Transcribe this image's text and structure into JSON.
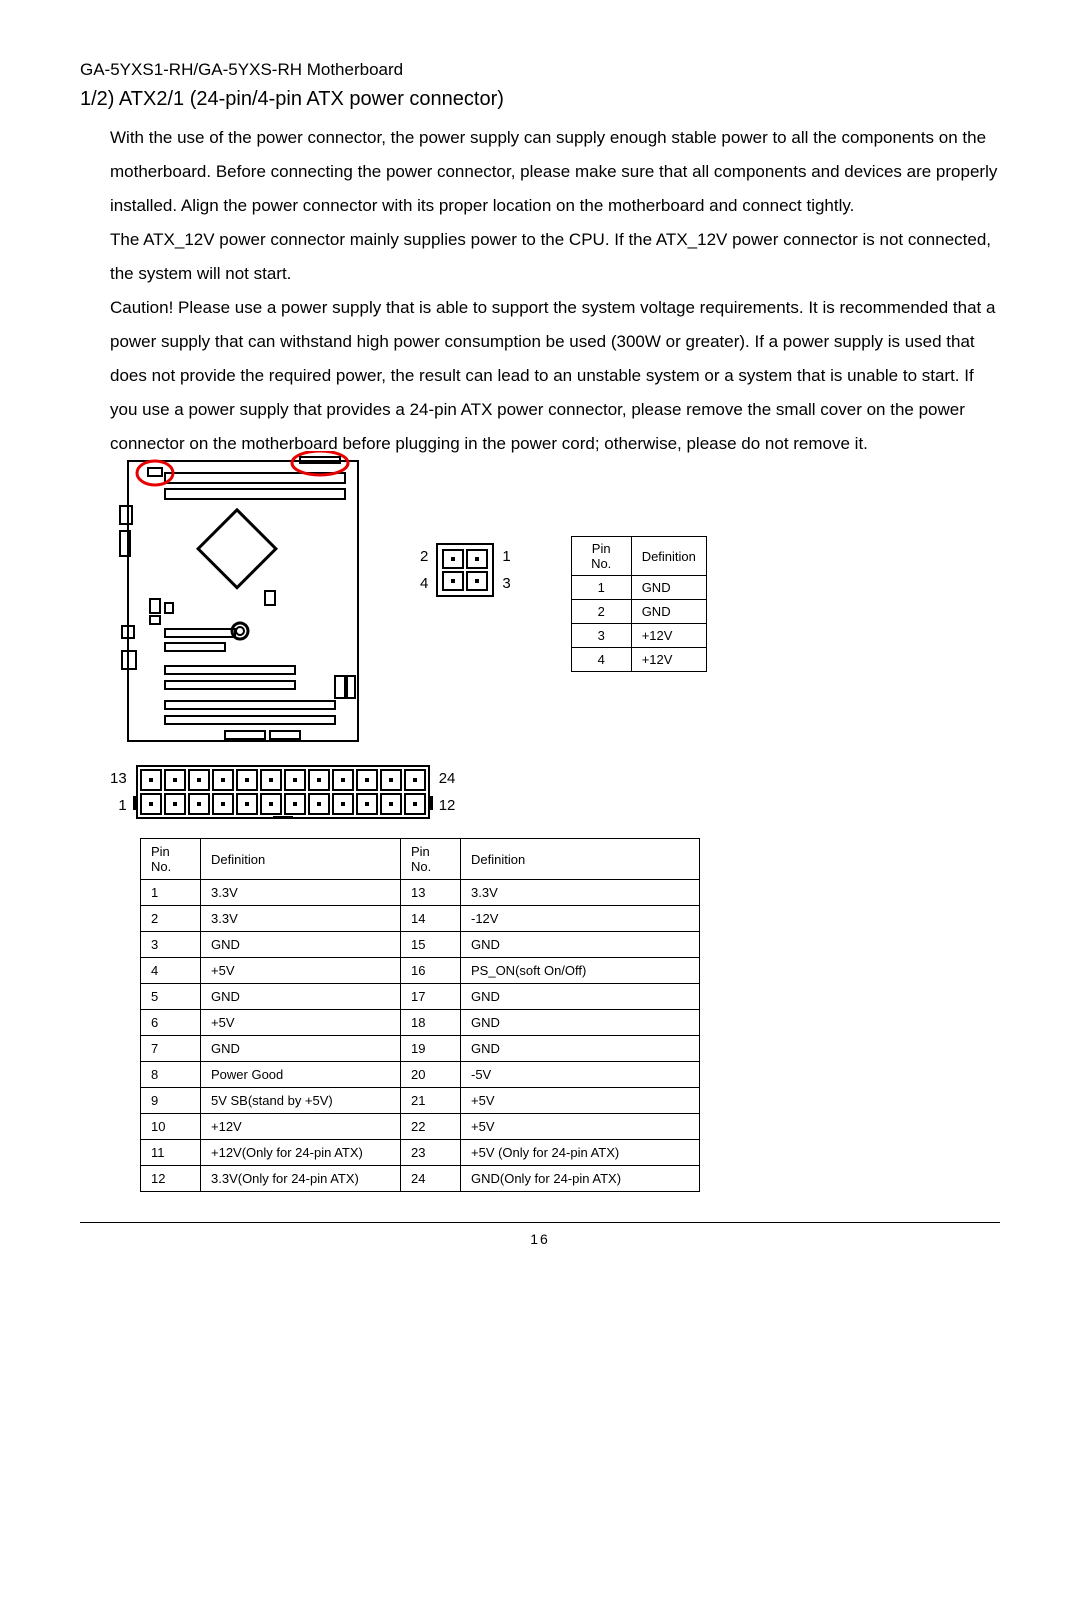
{
  "header": "GA-5YXS1-RH/GA-5YXS-RH Motherboard",
  "section_title": "1/2) ATX2/1 (24-pin/4-pin ATX power connector)",
  "paragraphs": [
    "With the use of the power connector, the power supply can supply enough stable power to all the components on the motherboard.  Before connecting the power connector, please make sure that all components and devices are properly installed.  Align the power connector with its proper  location on the motherboard and connect tightly.",
    "The ATX_12V power connector mainly supplies power to the CPU. If the ATX_12V power connector is not connected, the system will not start.",
    "Caution!  Please use a power supply that is able to support the system voltage requirements.  It is recommended that a power supply that can withstand high power consumption be used (300W or greater).  If a power supply is used that does not provide the required power, the result can lead to an unstable system or a system that is unable to start. If you use  a power supply that provides a 24-pin ATX power connector, please remove the small cover on the power connector on the motherboard before plugging in the power cord; otherwise, please do not remove it."
  ],
  "fourpin": {
    "labels": {
      "topLeft": "2",
      "topRight": "1",
      "botLeft": "4",
      "botRight": "3"
    },
    "table_headers": [
      "Pin No.",
      "Definition"
    ],
    "rows": [
      [
        "1",
        "GND"
      ],
      [
        "2",
        "GND"
      ],
      [
        "3",
        "+12V"
      ],
      [
        "4",
        "+12V"
      ]
    ]
  },
  "conn24": {
    "labels": {
      "topLeft": "13",
      "topRight": "24",
      "botLeft": "1",
      "botRight": "12"
    }
  },
  "table24": {
    "headers": [
      "Pin No.",
      "Definition",
      "Pin No.",
      "Definition"
    ],
    "rows": [
      [
        "1",
        "3.3V",
        "13",
        "3.3V"
      ],
      [
        "2",
        "3.3V",
        "14",
        "-12V"
      ],
      [
        "3",
        "GND",
        "15",
        "GND"
      ],
      [
        "4",
        "+5V",
        "16",
        "PS_ON(soft On/Off)"
      ],
      [
        "5",
        "GND",
        "17",
        "GND"
      ],
      [
        "6",
        "+5V",
        "18",
        "GND"
      ],
      [
        "7",
        "GND",
        "19",
        "GND"
      ],
      [
        "8",
        "Power Good",
        "20",
        "-5V"
      ],
      [
        "9",
        "5V SB(stand by +5V)",
        "21",
        "+5V"
      ],
      [
        "10",
        "+12V",
        "22",
        "+5V"
      ],
      [
        "11",
        "+12V(Only for 24-pin ATX)",
        "23",
        "+5V (Only for 24-pin ATX)"
      ],
      [
        "12",
        "3.3V(Only for 24-pin ATX)",
        "24",
        "GND(Only for 24-pin ATX)"
      ]
    ]
  },
  "page_number": "16",
  "colors": {
    "highlight": "#e60000",
    "stroke": "#000000"
  }
}
